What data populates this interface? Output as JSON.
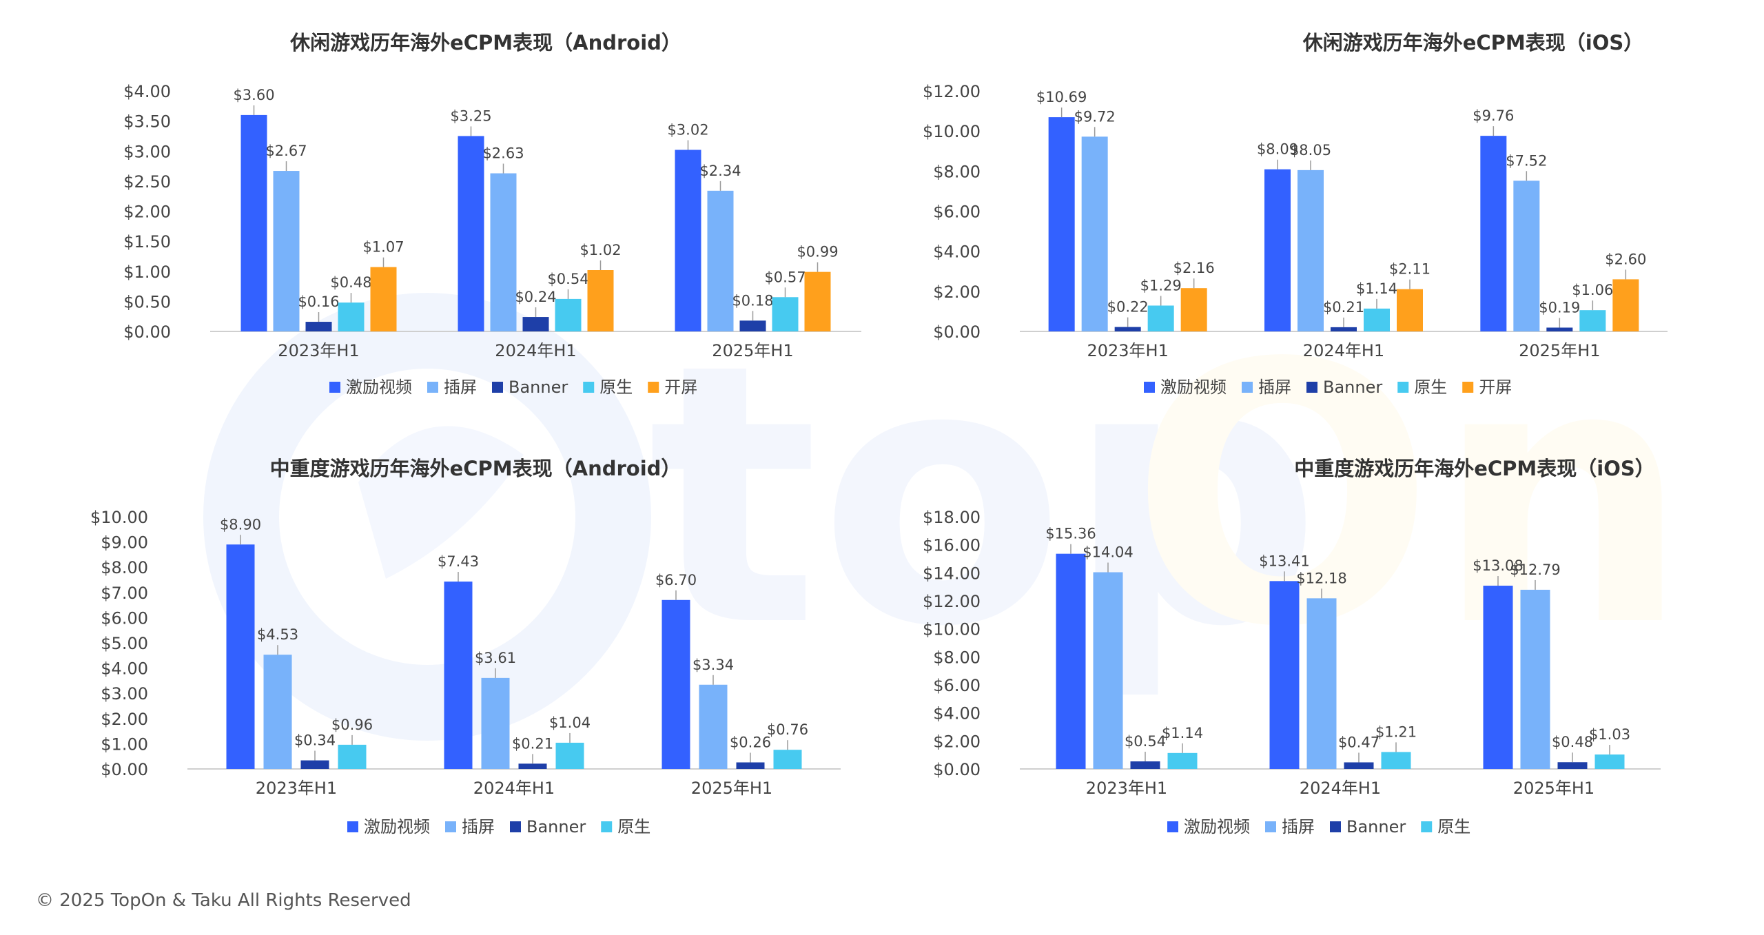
{
  "colors": {
    "激励视频": "#3361FF",
    "插屏": "#78B2FA",
    "Banner": "#1E3FA8",
    "原生": "#47CAF0",
    "开屏": "#FFA01C",
    "watermark_blue": "#EEF3FD",
    "watermark_orange": "#FFFBF0"
  },
  "footer": {
    "copyright": "© 2025 TopOn & Taku All Rights Reserved"
  },
  "chart_data": [
    {
      "type": "bar",
      "title": "休闲游戏历年海外eCPM表现（Android）",
      "categories": [
        "2023年H1",
        "2024年H1",
        "2025年H1"
      ],
      "series": [
        {
          "name": "激励视频",
          "values": [
            3.6,
            3.25,
            3.02
          ]
        },
        {
          "name": "插屏",
          "values": [
            2.67,
            2.63,
            2.34
          ]
        },
        {
          "name": "Banner",
          "values": [
            0.16,
            0.24,
            0.18
          ]
        },
        {
          "name": "原生",
          "values": [
            0.48,
            0.54,
            0.57
          ]
        },
        {
          "name": "开屏",
          "values": [
            1.07,
            1.02,
            0.99
          ]
        }
      ],
      "ylim": [
        0,
        4
      ],
      "yticks": [
        "$0.00",
        "$0.50",
        "$1.00",
        "$1.50",
        "$2.00",
        "$2.50",
        "$3.00",
        "$3.50",
        "$4.00"
      ],
      "data_labels": [
        [
          "$3.60",
          "$3.25",
          "$3.02"
        ],
        [
          "$2.67",
          "$2.63",
          "$2.34"
        ],
        [
          "$0.16",
          "$0.24",
          "$0.18"
        ],
        [
          "$0.48",
          "$0.54",
          "$0.57"
        ],
        [
          "$1.07",
          "$1.02",
          "$0.99"
        ]
      ],
      "grid": false,
      "legend": "bottom"
    },
    {
      "type": "bar",
      "title": "休闲游戏历年海外eCPM表现（iOS）",
      "categories": [
        "2023年H1",
        "2024年H1",
        "2025年H1"
      ],
      "series": [
        {
          "name": "激励视频",
          "values": [
            10.69,
            8.09,
            9.76
          ]
        },
        {
          "name": "插屏",
          "values": [
            9.72,
            8.05,
            7.52
          ]
        },
        {
          "name": "Banner",
          "values": [
            0.22,
            0.21,
            0.19
          ]
        },
        {
          "name": "原生",
          "values": [
            1.29,
            1.14,
            1.06
          ]
        },
        {
          "name": "开屏",
          "values": [
            2.16,
            2.11,
            2.6
          ]
        }
      ],
      "ylim": [
        0,
        12
      ],
      "yticks": [
        "$0.00",
        "$2.00",
        "$4.00",
        "$6.00",
        "$8.00",
        "$10.00",
        "$12.00"
      ],
      "data_labels": [
        [
          "$10.69",
          "$8.09",
          "$9.76"
        ],
        [
          "$9.72",
          "$8.05",
          "$7.52"
        ],
        [
          "$0.22",
          "$0.21",
          "$0.19"
        ],
        [
          "$1.29",
          "$1.14",
          "$1.06"
        ],
        [
          "$2.16",
          "$2.11",
          "$2.60"
        ]
      ],
      "grid": false,
      "legend": "bottom"
    },
    {
      "type": "bar",
      "title": "中重度游戏历年海外eCPM表现（Android）",
      "categories": [
        "2023年H1",
        "2024年H1",
        "2025年H1"
      ],
      "series": [
        {
          "name": "激励视频",
          "values": [
            8.9,
            7.43,
            6.7
          ]
        },
        {
          "name": "插屏",
          "values": [
            4.53,
            3.61,
            3.34
          ]
        },
        {
          "name": "Banner",
          "values": [
            0.34,
            0.21,
            0.26
          ]
        },
        {
          "name": "原生",
          "values": [
            0.96,
            1.04,
            0.76
          ]
        }
      ],
      "ylim": [
        0,
        10
      ],
      "yticks": [
        "$0.00",
        "$1.00",
        "$2.00",
        "$3.00",
        "$4.00",
        "$5.00",
        "$6.00",
        "$7.00",
        "$8.00",
        "$9.00",
        "$10.00"
      ],
      "data_labels": [
        [
          "$8.90",
          "$7.43",
          "$6.70"
        ],
        [
          "$4.53",
          "$3.61",
          "$3.34"
        ],
        [
          "$0.34",
          "$0.21",
          "$0.26"
        ],
        [
          "$0.96",
          "$1.04",
          "$0.76"
        ]
      ],
      "grid": false,
      "legend": "bottom"
    },
    {
      "type": "bar",
      "title": "中重度游戏历年海外eCPM表现（iOS）",
      "categories": [
        "2023年H1",
        "2024年H1",
        "2025年H1"
      ],
      "series": [
        {
          "name": "激励视频",
          "values": [
            15.36,
            13.41,
            13.08
          ]
        },
        {
          "name": "插屏",
          "values": [
            14.04,
            12.18,
            12.79
          ]
        },
        {
          "name": "Banner",
          "values": [
            0.54,
            0.47,
            0.48
          ]
        },
        {
          "name": "原生",
          "values": [
            1.14,
            1.21,
            1.03
          ]
        }
      ],
      "ylim": [
        0,
        18
      ],
      "yticks": [
        "$0.00",
        "$2.00",
        "$4.00",
        "$6.00",
        "$8.00",
        "$10.00",
        "$12.00",
        "$14.00",
        "$16.00",
        "$18.00"
      ],
      "data_labels": [
        [
          "$15.36",
          "$13.41",
          "$13.08"
        ],
        [
          "$14.04",
          "$12.18",
          "$12.79"
        ],
        [
          "$0.54",
          "$0.47",
          "$0.48"
        ],
        [
          "$1.14",
          "$1.21",
          "$1.03"
        ]
      ],
      "grid": false,
      "legend": "bottom"
    }
  ]
}
